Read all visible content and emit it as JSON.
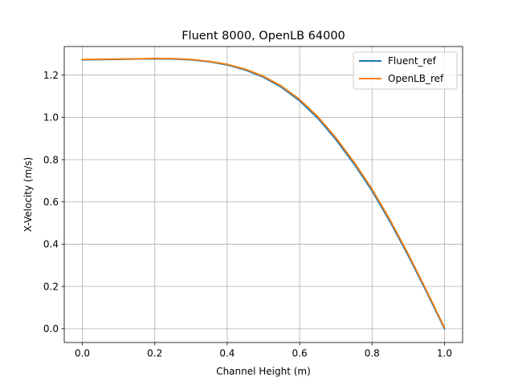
{
  "chart_data": {
    "type": "line",
    "title": "Fluent 8000, OpenLB 64000",
    "xlabel": "Channel Height (m)",
    "ylabel": "X-Velocity (m/s)",
    "xlim": [
      -0.05,
      1.05
    ],
    "ylim": [
      -0.065,
      1.335
    ],
    "xticks": [
      0.0,
      0.2,
      0.4,
      0.6,
      0.8,
      1.0
    ],
    "xtick_labels": [
      "0.0",
      "0.2",
      "0.4",
      "0.6",
      "0.8",
      "1.0"
    ],
    "yticks": [
      0.0,
      0.2,
      0.4,
      0.6,
      0.8,
      1.0,
      1.2
    ],
    "ytick_labels": [
      "0.0",
      "0.2",
      "0.4",
      "0.6",
      "0.8",
      "1.0",
      "1.2"
    ],
    "grid": true,
    "legend_position": "top-right",
    "series": [
      {
        "name": "Fluent_ref",
        "color": "#1f77b4",
        "x": [
          0.0,
          0.05,
          0.1,
          0.15,
          0.2,
          0.25,
          0.3,
          0.35,
          0.4,
          0.45,
          0.5,
          0.55,
          0.6,
          0.65,
          0.7,
          0.75,
          0.8,
          0.85,
          0.9,
          0.95,
          1.0
        ],
        "y": [
          1.272,
          1.273,
          1.274,
          1.276,
          1.277,
          1.276,
          1.272,
          1.263,
          1.248,
          1.224,
          1.19,
          1.142,
          1.078,
          0.996,
          0.895,
          0.78,
          0.652,
          0.505,
          0.345,
          0.175,
          0.0
        ]
      },
      {
        "name": "OpenLB_ref",
        "color": "#ff7f0e",
        "x": [
          0.0,
          0.05,
          0.1,
          0.15,
          0.2,
          0.25,
          0.3,
          0.35,
          0.4,
          0.45,
          0.5,
          0.55,
          0.6,
          0.65,
          0.7,
          0.75,
          0.8,
          0.85,
          0.9,
          0.95,
          1.0
        ],
        "y": [
          1.274,
          1.275,
          1.276,
          1.277,
          1.279,
          1.278,
          1.274,
          1.265,
          1.251,
          1.228,
          1.195,
          1.148,
          1.085,
          1.004,
          0.904,
          0.789,
          0.661,
          0.514,
          0.353,
          0.182,
          0.006
        ]
      }
    ]
  }
}
